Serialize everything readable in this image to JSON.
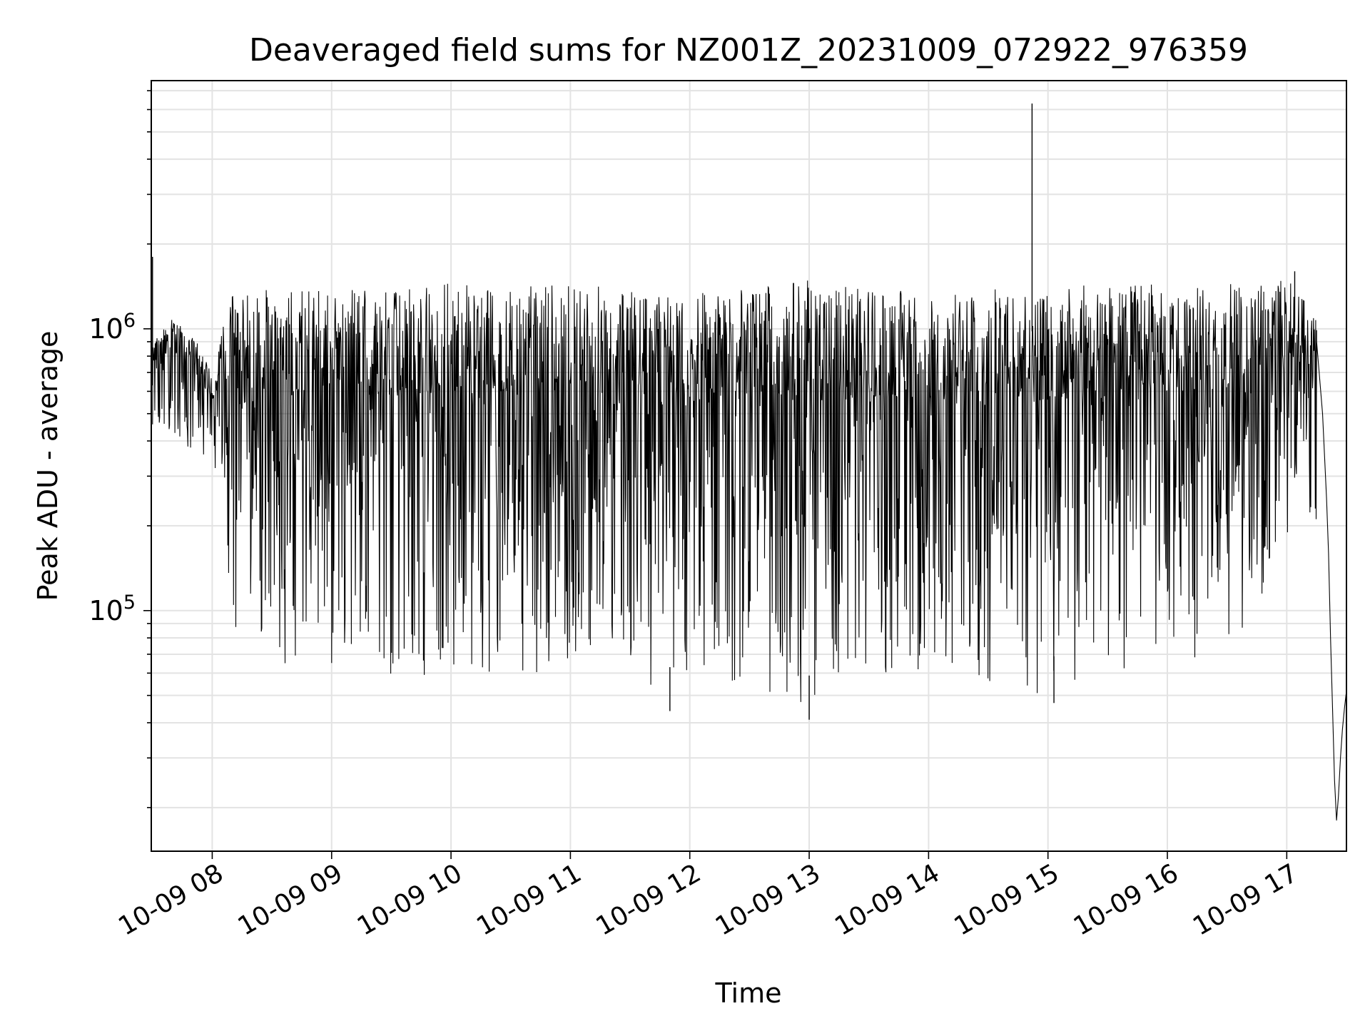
{
  "chart_data": {
    "type": "line",
    "title": "Deaveraged field sums for NZ001Z_20231009_072922_976359",
    "xlabel": "Time",
    "ylabel": "Peak ADU - average",
    "y_scale": "log",
    "ylim": [
      14000,
      7600000
    ],
    "xlim": [
      "2023-10-09 07:29:22",
      "2023-10-09 17:30:00"
    ],
    "grid": true,
    "x_ticks": [
      {
        "value": "2023-10-09 08:00",
        "label": "10-09 08"
      },
      {
        "value": "2023-10-09 09:00",
        "label": "10-09 09"
      },
      {
        "value": "2023-10-09 10:00",
        "label": "10-09 10"
      },
      {
        "value": "2023-10-09 11:00",
        "label": "10-09 11"
      },
      {
        "value": "2023-10-09 12:00",
        "label": "10-09 12"
      },
      {
        "value": "2023-10-09 13:00",
        "label": "10-09 13"
      },
      {
        "value": "2023-10-09 14:00",
        "label": "10-09 14"
      },
      {
        "value": "2023-10-09 15:00",
        "label": "10-09 15"
      },
      {
        "value": "2023-10-09 16:00",
        "label": "10-09 16"
      },
      {
        "value": "2023-10-09 17:00",
        "label": "10-09 17"
      }
    ],
    "y_ticks": [
      {
        "value": 100000,
        "base": "10",
        "exp": "5"
      },
      {
        "value": 1000000,
        "base": "10",
        "exp": "6"
      }
    ],
    "series": [
      {
        "color": "#000000",
        "envelope_points": [
          {
            "time": "2023-10-09 07:30",
            "high": 900000,
            "low": 450000
          },
          {
            "time": "2023-10-09 07:40",
            "high": 1100000,
            "low": 420000
          },
          {
            "time": "2023-10-09 07:50",
            "high": 950000,
            "low": 350000
          },
          {
            "time": "2023-10-09 08:00",
            "high": 700000,
            "low": 300000
          },
          {
            "time": "2023-10-09 08:10",
            "high": 1300000,
            "low": 90000
          },
          {
            "time": "2023-10-09 08:30",
            "high": 1400000,
            "low": 60000
          },
          {
            "time": "2023-10-09 09:00",
            "high": 1400000,
            "low": 62000
          },
          {
            "time": "2023-10-09 09:30",
            "high": 1400000,
            "low": 55000
          },
          {
            "time": "2023-10-09 10:00",
            "high": 1450000,
            "low": 62000
          },
          {
            "time": "2023-10-09 10:30",
            "high": 1400000,
            "low": 58000
          },
          {
            "time": "2023-10-09 11:00",
            "high": 1450000,
            "low": 62000
          },
          {
            "time": "2023-10-09 11:30",
            "high": 1400000,
            "low": 65000
          },
          {
            "time": "2023-10-09 11:50",
            "high": 1300000,
            "low": 45000
          },
          {
            "time": "2023-10-09 12:30",
            "high": 1400000,
            "low": 56000
          },
          {
            "time": "2023-10-09 13:00",
            "high": 1500000,
            "low": 42000
          },
          {
            "time": "2023-10-09 13:30",
            "high": 1400000,
            "low": 55000
          },
          {
            "time": "2023-10-09 14:00",
            "high": 1350000,
            "low": 62000
          },
          {
            "time": "2023-10-09 14:30",
            "high": 1400000,
            "low": 50000
          },
          {
            "time": "2023-10-09 15:00",
            "high": 1400000,
            "low": 48000
          },
          {
            "time": "2023-10-09 15:30",
            "high": 1450000,
            "low": 60000
          },
          {
            "time": "2023-10-09 16:00",
            "high": 1450000,
            "low": 62000
          },
          {
            "time": "2023-10-09 16:30",
            "high": 1450000,
            "low": 65000
          },
          {
            "time": "2023-10-09 17:00",
            "high": 1500000,
            "low": 150000
          },
          {
            "time": "2023-10-09 17:15",
            "high": 1100000,
            "low": 200000
          }
        ],
        "spikes": [
          {
            "time": "2023-10-09 07:30",
            "value": 1800000
          },
          {
            "time": "2023-10-09 14:52",
            "value": 6300000
          },
          {
            "time": "2023-10-09 11:50",
            "value": 44000
          },
          {
            "time": "2023-10-09 13:00",
            "value": 41000
          },
          {
            "time": "2023-10-09 15:03",
            "value": 47000
          },
          {
            "time": "2023-10-09 17:04",
            "value": 1600000
          }
        ],
        "tail": [
          {
            "time": "2023-10-09 17:15",
            "value": 900000
          },
          {
            "time": "2023-10-09 17:18",
            "value": 500000
          },
          {
            "time": "2023-10-09 17:20",
            "value": 250000
          },
          {
            "time": "2023-10-09 17:21",
            "value": 160000
          },
          {
            "time": "2023-10-09 17:22",
            "value": 80000
          },
          {
            "time": "2023-10-09 17:23",
            "value": 45000
          },
          {
            "time": "2023-10-09 17:24",
            "value": 25000
          },
          {
            "time": "2023-10-09 17:25",
            "value": 18000
          },
          {
            "time": "2023-10-09 17:26",
            "value": 22000
          },
          {
            "time": "2023-10-09 17:27",
            "value": 30000
          },
          {
            "time": "2023-10-09 17:28",
            "value": 38000
          },
          {
            "time": "2023-10-09 17:29",
            "value": 45000
          },
          {
            "time": "2023-10-09 17:30",
            "value": 52000
          }
        ]
      }
    ]
  }
}
